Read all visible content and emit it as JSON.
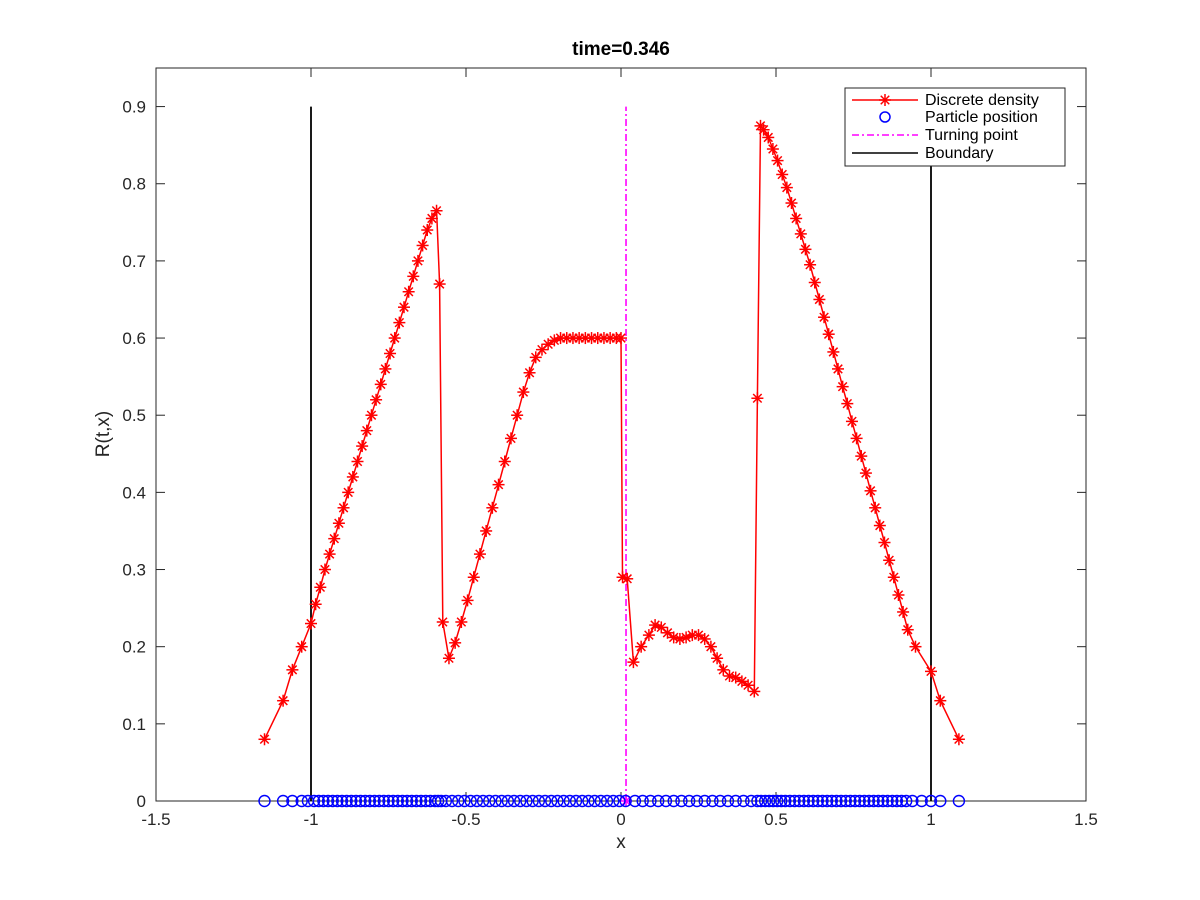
{
  "chart_data": {
    "type": "line",
    "title": "time=0.346",
    "xlabel": "x",
    "ylabel": "R(t,x)",
    "xlim": [
      -1.5,
      1.5
    ],
    "ylim": [
      0,
      0.95
    ],
    "xticks": [
      -1.5,
      -1,
      -0.5,
      0,
      0.5,
      1,
      1.5
    ],
    "xtick_labels": [
      "-1.5",
      "-1",
      "-0.5",
      "0",
      "0.5",
      "1",
      "1.5"
    ],
    "yticks": [
      0,
      0.1,
      0.2,
      0.3,
      0.4,
      0.5,
      0.6,
      0.7,
      0.8,
      0.9
    ],
    "ytick_labels": [
      "0",
      "0.1",
      "0.2",
      "0.3",
      "0.4",
      "0.5",
      "0.6",
      "0.7",
      "0.8",
      "0.9"
    ],
    "grid": false,
    "legend_position": "top-right",
    "colors": {
      "density": "#ff0000",
      "particles": "#0000ff",
      "turning": "#ff00ff",
      "boundary": "#000000"
    },
    "series": [
      {
        "name": "Discrete density",
        "style": "red-line-asterisk",
        "points": [
          [
            -1.15,
            0.08
          ],
          [
            -1.09,
            0.13
          ],
          [
            -1.06,
            0.17
          ],
          [
            -1.03,
            0.2
          ],
          [
            -1.0,
            0.23
          ],
          [
            -0.985,
            0.255
          ],
          [
            -0.97,
            0.277
          ],
          [
            -0.955,
            0.3
          ],
          [
            -0.94,
            0.32
          ],
          [
            -0.925,
            0.34
          ],
          [
            -0.91,
            0.36
          ],
          [
            -0.895,
            0.38
          ],
          [
            -0.88,
            0.4
          ],
          [
            -0.865,
            0.42
          ],
          [
            -0.85,
            0.44
          ],
          [
            -0.835,
            0.46
          ],
          [
            -0.82,
            0.48
          ],
          [
            -0.805,
            0.5
          ],
          [
            -0.79,
            0.52
          ],
          [
            -0.775,
            0.54
          ],
          [
            -0.76,
            0.56
          ],
          [
            -0.745,
            0.58
          ],
          [
            -0.73,
            0.6
          ],
          [
            -0.715,
            0.62
          ],
          [
            -0.7,
            0.64
          ],
          [
            -0.685,
            0.66
          ],
          [
            -0.67,
            0.68
          ],
          [
            -0.655,
            0.7
          ],
          [
            -0.64,
            0.72
          ],
          [
            -0.625,
            0.74
          ],
          [
            -0.61,
            0.755
          ],
          [
            -0.595,
            0.765
          ],
          [
            -0.585,
            0.67
          ],
          [
            -0.575,
            0.232
          ],
          [
            -0.555,
            0.185
          ],
          [
            -0.535,
            0.205
          ],
          [
            -0.515,
            0.232
          ],
          [
            -0.495,
            0.26
          ],
          [
            -0.475,
            0.29
          ],
          [
            -0.455,
            0.32
          ],
          [
            -0.435,
            0.35
          ],
          [
            -0.415,
            0.38
          ],
          [
            -0.395,
            0.41
          ],
          [
            -0.375,
            0.44
          ],
          [
            -0.355,
            0.47
          ],
          [
            -0.335,
            0.5
          ],
          [
            -0.315,
            0.53
          ],
          [
            -0.295,
            0.555
          ],
          [
            -0.275,
            0.575
          ],
          [
            -0.255,
            0.585
          ],
          [
            -0.235,
            0.592
          ],
          [
            -0.215,
            0.597
          ],
          [
            -0.195,
            0.6
          ],
          [
            -0.175,
            0.6
          ],
          [
            -0.155,
            0.6
          ],
          [
            -0.135,
            0.6
          ],
          [
            -0.115,
            0.6
          ],
          [
            -0.095,
            0.6
          ],
          [
            -0.075,
            0.6
          ],
          [
            -0.055,
            0.6
          ],
          [
            -0.035,
            0.6
          ],
          [
            -0.015,
            0.6
          ],
          [
            0.0,
            0.6
          ],
          [
            0.005,
            0.29
          ],
          [
            0.02,
            0.288
          ],
          [
            0.04,
            0.18
          ],
          [
            0.065,
            0.2
          ],
          [
            0.09,
            0.215
          ],
          [
            0.11,
            0.228
          ],
          [
            0.13,
            0.225
          ],
          [
            0.15,
            0.218
          ],
          [
            0.17,
            0.212
          ],
          [
            0.19,
            0.21
          ],
          [
            0.21,
            0.212
          ],
          [
            0.23,
            0.215
          ],
          [
            0.25,
            0.215
          ],
          [
            0.27,
            0.21
          ],
          [
            0.29,
            0.2
          ],
          [
            0.31,
            0.185
          ],
          [
            0.33,
            0.17
          ],
          [
            0.35,
            0.162
          ],
          [
            0.37,
            0.16
          ],
          [
            0.39,
            0.155
          ],
          [
            0.41,
            0.15
          ],
          [
            0.43,
            0.142
          ],
          [
            0.44,
            0.522
          ],
          [
            0.45,
            0.875
          ],
          [
            0.46,
            0.87
          ],
          [
            0.475,
            0.86
          ],
          [
            0.49,
            0.845
          ],
          [
            0.505,
            0.83
          ],
          [
            0.52,
            0.812
          ],
          [
            0.535,
            0.795
          ],
          [
            0.55,
            0.775
          ],
          [
            0.565,
            0.755
          ],
          [
            0.58,
            0.735
          ],
          [
            0.595,
            0.715
          ],
          [
            0.61,
            0.695
          ],
          [
            0.625,
            0.672
          ],
          [
            0.64,
            0.65
          ],
          [
            0.655,
            0.627
          ],
          [
            0.67,
            0.605
          ],
          [
            0.685,
            0.582
          ],
          [
            0.7,
            0.56
          ],
          [
            0.715,
            0.537
          ],
          [
            0.73,
            0.515
          ],
          [
            0.745,
            0.492
          ],
          [
            0.76,
            0.47
          ],
          [
            0.775,
            0.447
          ],
          [
            0.79,
            0.425
          ],
          [
            0.805,
            0.402
          ],
          [
            0.82,
            0.38
          ],
          [
            0.835,
            0.357
          ],
          [
            0.85,
            0.335
          ],
          [
            0.865,
            0.312
          ],
          [
            0.88,
            0.29
          ],
          [
            0.895,
            0.267
          ],
          [
            0.91,
            0.245
          ],
          [
            0.925,
            0.222
          ],
          [
            0.95,
            0.2
          ],
          [
            1.0,
            0.168
          ],
          [
            1.03,
            0.13
          ],
          [
            1.09,
            0.08
          ]
        ]
      },
      {
        "name": "Particle position",
        "style": "blue-circle",
        "x": [
          -1.15,
          -1.09,
          -1.06,
          -1.03,
          -1.01,
          -0.99,
          -0.975,
          -0.96,
          -0.945,
          -0.93,
          -0.915,
          -0.9,
          -0.885,
          -0.87,
          -0.855,
          -0.84,
          -0.825,
          -0.81,
          -0.795,
          -0.78,
          -0.765,
          -0.75,
          -0.735,
          -0.72,
          -0.705,
          -0.69,
          -0.675,
          -0.66,
          -0.645,
          -0.63,
          -0.615,
          -0.6,
          -0.59,
          -0.58,
          -0.565,
          -0.545,
          -0.525,
          -0.505,
          -0.485,
          -0.465,
          -0.445,
          -0.425,
          -0.405,
          -0.385,
          -0.365,
          -0.345,
          -0.325,
          -0.305,
          -0.285,
          -0.265,
          -0.245,
          -0.225,
          -0.205,
          -0.185,
          -0.165,
          -0.145,
          -0.125,
          -0.105,
          -0.085,
          -0.065,
          -0.045,
          -0.025,
          -0.005,
          0.015,
          0.045,
          0.07,
          0.095,
          0.12,
          0.145,
          0.17,
          0.195,
          0.22,
          0.245,
          0.27,
          0.295,
          0.32,
          0.345,
          0.37,
          0.395,
          0.42,
          0.44,
          0.452,
          0.465,
          0.478,
          0.491,
          0.504,
          0.517,
          0.53,
          0.545,
          0.56,
          0.575,
          0.59,
          0.605,
          0.62,
          0.635,
          0.65,
          0.665,
          0.68,
          0.695,
          0.71,
          0.725,
          0.74,
          0.755,
          0.77,
          0.785,
          0.8,
          0.815,
          0.83,
          0.845,
          0.86,
          0.875,
          0.89,
          0.905,
          0.92,
          0.94,
          0.97,
          1.0,
          1.03,
          1.09
        ]
      },
      {
        "name": "Turning point",
        "style": "magenta-dashdot",
        "x": 0.0162,
        "y_range": [
          0,
          0.9
        ]
      },
      {
        "name": "Boundary",
        "style": "black-line",
        "x_positions": [
          -1,
          1
        ],
        "y_range": [
          0,
          0.9
        ]
      }
    ]
  }
}
